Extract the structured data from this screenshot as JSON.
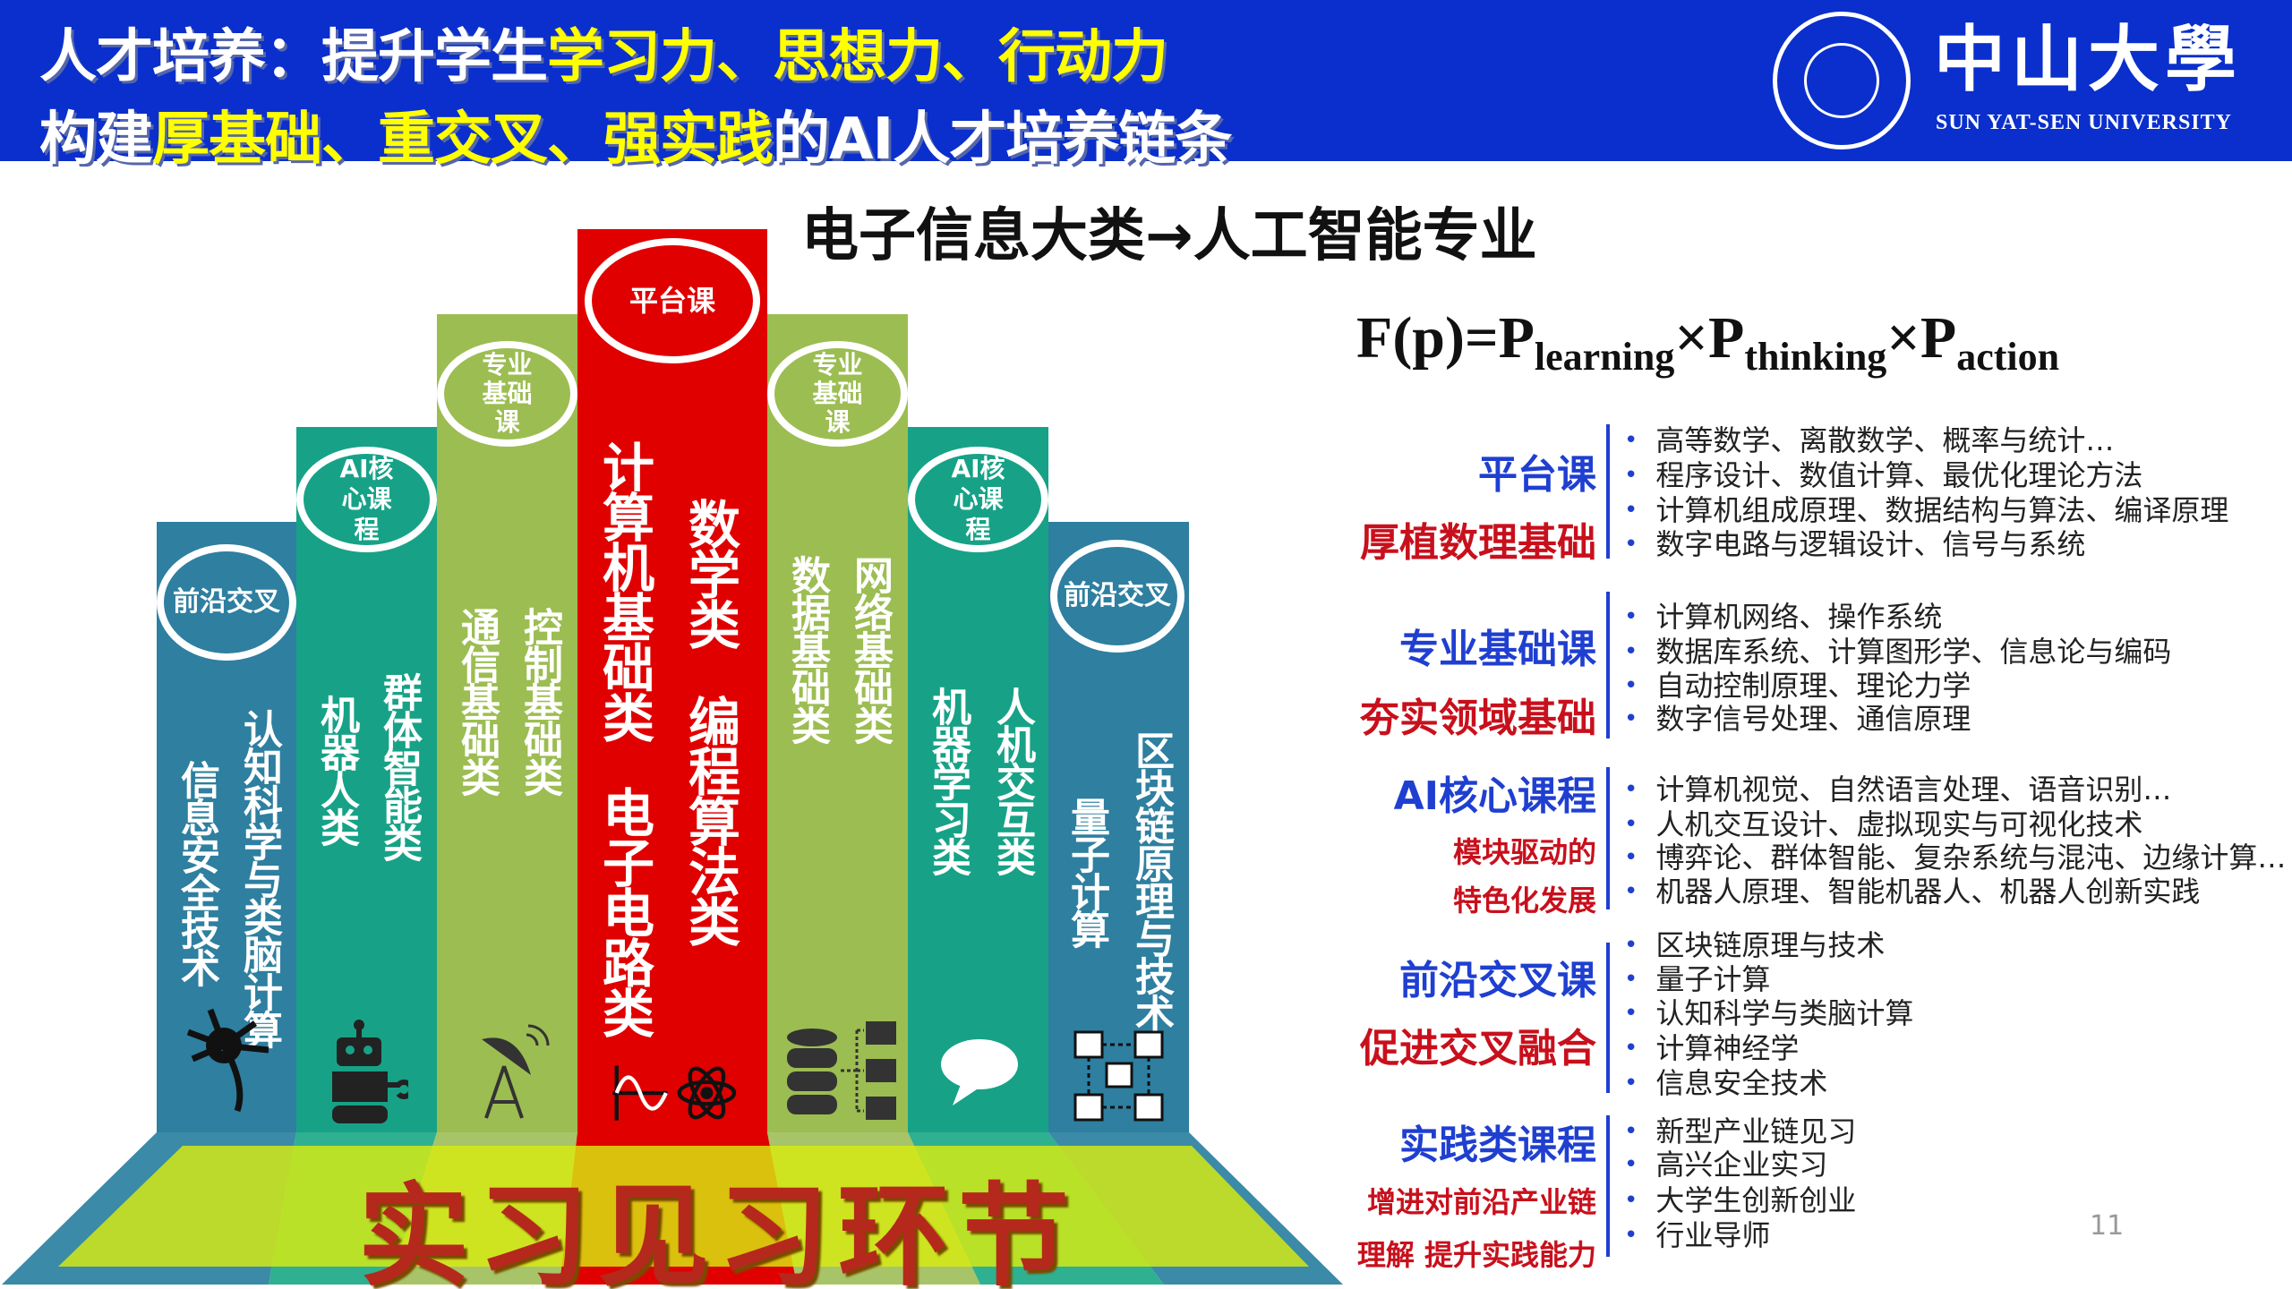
{
  "header": {
    "line1": {
      "plain": "人才培养：提升学生",
      "highlight": "学习力、思想力、行动力"
    },
    "line2": {
      "p1": "构建",
      "h1": "厚基础、重交叉、强实践",
      "p2": "的AI人才培养链条"
    },
    "logo_cn": "中山大學",
    "logo_en": "SUN  YAT-SEN UNIVERSITY"
  },
  "subtitle": "电子信息大类→人工智能专业",
  "formula": {
    "lhs": "F(p)=",
    "p": "P",
    "sub1": "learning",
    "times": "×",
    "sub2": "thinking",
    "sub3": "action"
  },
  "colors": {
    "header_bg": "#0a2fcc",
    "frontier": "#2e7fa0",
    "ai_core": "#17a287",
    "foundation": "#9cbd52",
    "platform": "#e00000",
    "practice_base": "#c8e020"
  },
  "columns": [
    {
      "badge": "前沿交叉",
      "texts": [
        "信息安全技术",
        "认知科学与类脑计算"
      ],
      "icon": "neuron-icon"
    },
    {
      "badge": "AI核心课程",
      "texts": [
        "机器人类",
        "群体智能类"
      ],
      "icon": "robot-icon"
    },
    {
      "badge": "专业基础课",
      "texts": [
        "通信基础类",
        "控制基础类"
      ],
      "icon": "satellite-dish-icon"
    },
    {
      "badge": "平台课",
      "texts": [
        "计算机基础类",
        "电子电路类",
        "数学类",
        "编程算法类"
      ],
      "icon": "signal-atom-icon"
    },
    {
      "badge": "专业基础课",
      "texts": [
        "数据基础类",
        "网络基础类"
      ],
      "icon": "database-icon"
    },
    {
      "badge": "AI核心课程",
      "texts": [
        "机器学习类",
        "人机交互类"
      ],
      "icon": "chat-bubble-icon"
    },
    {
      "badge": "前沿交叉",
      "texts": [
        "量子计算",
        "区块链原理与技术"
      ],
      "icon": "blockchain-icon"
    }
  ],
  "base_label": "实习见习环节",
  "sections": [
    {
      "title": "平台课",
      "subtitle": [
        "厚植数理基础"
      ],
      "items": [
        "高等数学、离散数学、概率与统计…",
        "程序设计、数值计算、最优化理论方法",
        "计算机组成原理、数据结构与算法、编译原理",
        "数字电路与逻辑设计、信号与系统"
      ]
    },
    {
      "title": "专业基础课",
      "subtitle": [
        "夯实领域基础"
      ],
      "items": [
        "计算机网络、操作系统",
        "数据库系统、计算图形学、信息论与编码",
        "自动控制原理、理论力学",
        "数字信号处理、通信原理"
      ]
    },
    {
      "title": "AI核心课程",
      "subtitle": [
        "模块驱动的",
        "特色化发展"
      ],
      "items": [
        "计算机视觉、自然语言处理、语音识别…",
        "人机交互设计、虚拟现实与可视化技术",
        "博弈论、群体智能、复杂系统与混沌、边缘计算…",
        "机器人原理、智能机器人、机器人创新实践"
      ]
    },
    {
      "title": "前沿交叉课",
      "subtitle": [
        "促进交叉融合"
      ],
      "items": [
        "区块链原理与技术",
        "量子计算",
        "认知科学与类脑计算",
        "计算神经学",
        "信息安全技术"
      ]
    },
    {
      "title": "实践类课程",
      "subtitle": [
        "增进对前沿产业链",
        "理解 提升实践能力"
      ],
      "items": [
        "新型产业链见习",
        "高兴企业实习",
        "大学生创新创业",
        "行业导师"
      ]
    }
  ],
  "page_number": "11"
}
